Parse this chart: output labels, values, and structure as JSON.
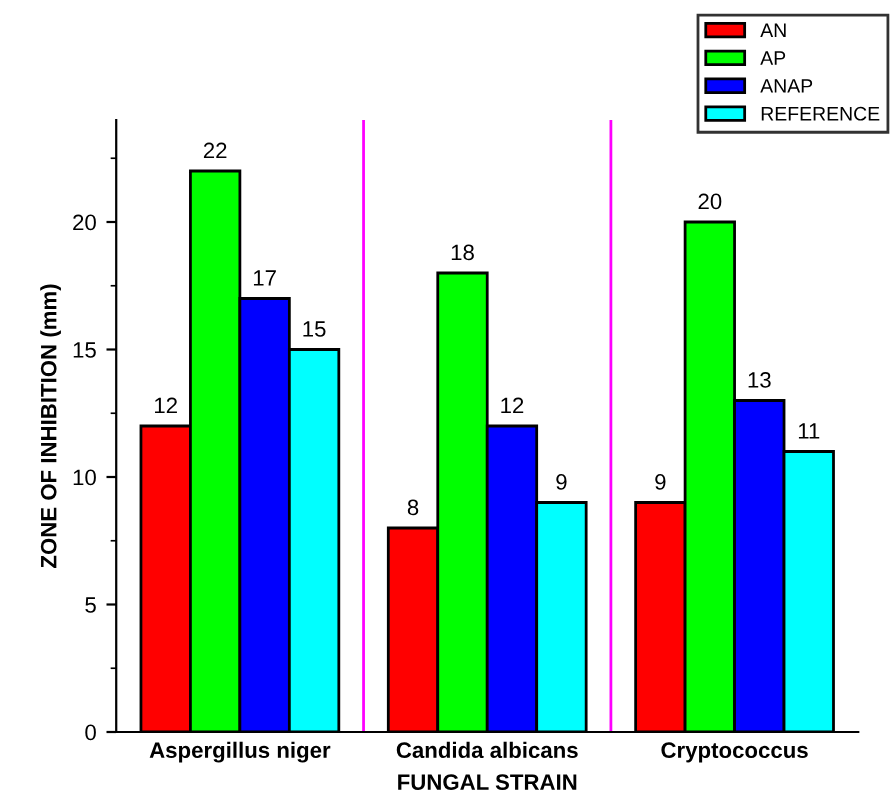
{
  "chart_data": {
    "type": "bar",
    "xlabel": "FUNGAL STRAIN",
    "ylabel": "ZONE OF INHIBITION (mm)",
    "categories": [
      "Aspergillus niger",
      "Candida albicans",
      "Cryptococcus"
    ],
    "series": [
      {
        "name": "AN",
        "color": "#ff0000",
        "values": [
          12,
          8,
          9
        ]
      },
      {
        "name": "AP",
        "color": "#00ff00",
        "values": [
          22,
          18,
          20
        ]
      },
      {
        "name": "ANAP",
        "color": "#0000ff",
        "values": [
          17,
          12,
          13
        ]
      },
      {
        "name": "REFERENCE",
        "color": "#00ffff",
        "values": [
          15,
          9,
          11
        ]
      }
    ],
    "ylim": [
      0,
      24
    ],
    "yticks": [
      0,
      5,
      10,
      15,
      20
    ],
    "data_labels": true,
    "legend": "top right",
    "grid": false
  }
}
